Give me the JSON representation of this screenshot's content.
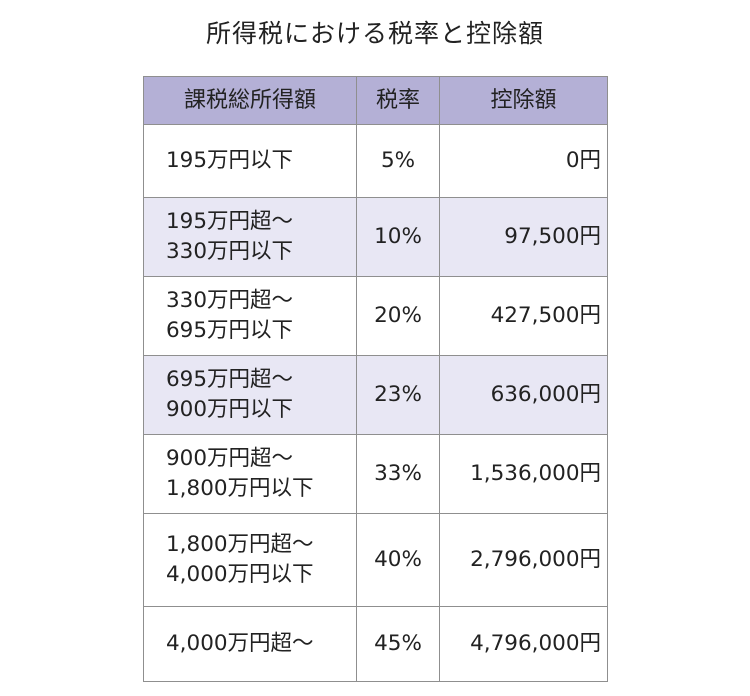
{
  "title": "所得税における税率と控除額",
  "colors": {
    "header_bg": "#b4b0d6",
    "shaded_row_bg": "#e8e7f4",
    "border": "#8f8f8f"
  },
  "table": {
    "headers": [
      "課税総所得額",
      "税率",
      "控除額"
    ],
    "rows": [
      {
        "range": "195万円以下",
        "rate": "5%",
        "deduction": "0円"
      },
      {
        "range": "195万円超～\n330万円以下",
        "rate": "10%",
        "deduction": "97,500円"
      },
      {
        "range": "330万円超～\n695万円以下",
        "rate": "20%",
        "deduction": "427,500円"
      },
      {
        "range": "695万円超～\n900万円以下",
        "rate": "23%",
        "deduction": "636,000円"
      },
      {
        "range": "900万円超～\n1,800万円以下",
        "rate": "33%",
        "deduction": "1,536,000円"
      },
      {
        "range": "1,800万円超～\n4,000万円以下",
        "rate": "40%",
        "deduction": "2,796,000円"
      },
      {
        "range": "4,000万円超～",
        "rate": "45%",
        "deduction": "4,796,000円"
      }
    ]
  }
}
